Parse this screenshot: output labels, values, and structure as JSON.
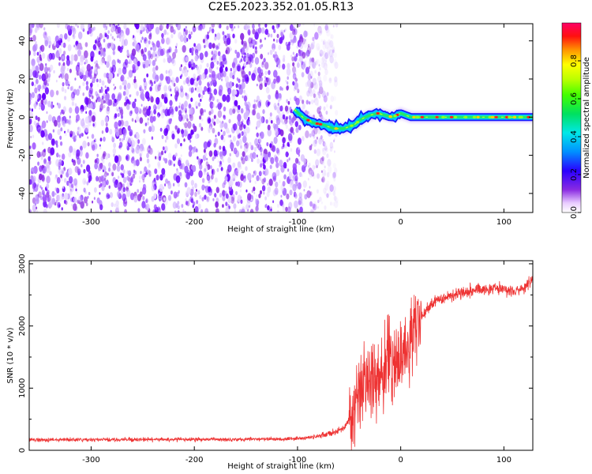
{
  "title": "C2E5.2023.352.01.05.R13",
  "chart_data": [
    {
      "type": "heatmap",
      "xlabel": "Height of straight line (km)",
      "ylabel": "Frequency (Hz)",
      "xlim": [
        -360,
        128
      ],
      "ylim": [
        -50,
        49
      ],
      "xticks": [
        -300,
        -200,
        -100,
        0,
        100
      ],
      "yticks": [
        -40,
        -20,
        0,
        20,
        40
      ],
      "noise_region": {
        "x": [
          -360,
          -70
        ]
      },
      "signal_trace": {
        "x": [
          -103,
          -95,
          -85,
          -75,
          -65,
          -55,
          -45,
          -38,
          -30,
          -22,
          -15,
          -8,
          0,
          10,
          30,
          60,
          90,
          128
        ],
        "y": [
          4,
          0,
          -3,
          -4,
          -6,
          -6,
          -4,
          -1,
          1,
          2,
          1,
          0,
          2,
          0,
          0,
          0,
          0,
          0
        ]
      },
      "colorbar": {
        "label": "Normalized spectral amplitude",
        "range": [
          0,
          1
        ],
        "ticks": [
          0.0,
          0.2,
          0.4,
          0.6,
          0.8
        ],
        "tick_labels": [
          "0.0",
          "0.2",
          "0.4",
          "0.6",
          "0.8"
        ]
      },
      "grid": false
    },
    {
      "type": "line",
      "xlabel": "Height of straight line (km)",
      "ylabel": "SNR (10 * v/v)",
      "xlim": [
        -360,
        128
      ],
      "ylim": [
        0,
        3050
      ],
      "xticks": [
        -300,
        -200,
        -100,
        0,
        100
      ],
      "yticks": [
        0,
        1000,
        2000,
        3000
      ],
      "series": [
        {
          "color": "#ee3333",
          "x": [
            -360,
            -300,
            -200,
            -120,
            -90,
            -70,
            -55,
            -48,
            -42,
            -35,
            -28,
            -20,
            -15,
            -10,
            -5,
            0,
            5,
            10,
            15,
            20,
            25,
            30,
            40,
            60,
            80,
            100,
            110,
            120,
            128
          ],
          "y": [
            170,
            170,
            175,
            180,
            200,
            260,
            350,
            550,
            850,
            1050,
            1150,
            1250,
            1350,
            1400,
            1450,
            1500,
            1600,
            1800,
            2000,
            2150,
            2250,
            2350,
            2450,
            2550,
            2600,
            2600,
            2550,
            2600,
            2750
          ]
        }
      ],
      "grid": false
    }
  ]
}
